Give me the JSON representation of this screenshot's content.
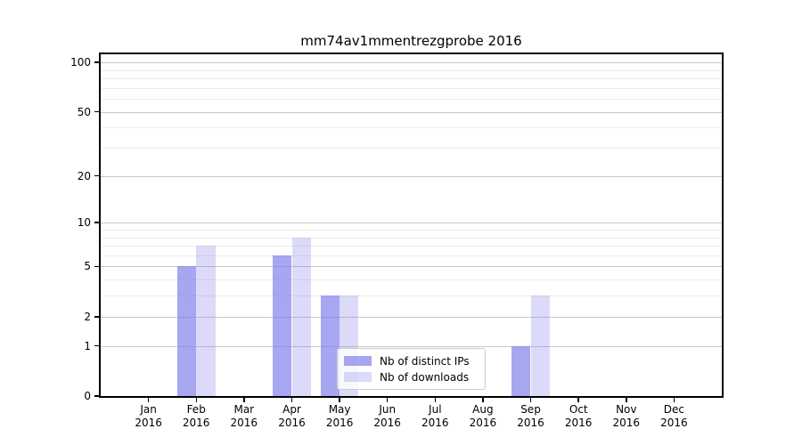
{
  "page": {
    "background_color": "#ffffff"
  },
  "chart_data": {
    "type": "bar",
    "title": "mm74av1mmentrezgprobe 2016",
    "categories": [
      "Jan",
      "Feb",
      "Mar",
      "Apr",
      "May",
      "Jun",
      "Jul",
      "Aug",
      "Sep",
      "Oct",
      "Nov",
      "Dec"
    ],
    "year": "2016",
    "series": [
      {
        "name": "Nb of distinct IPs",
        "values": [
          0,
          5,
          0,
          6,
          3,
          0,
          0,
          0,
          1,
          0,
          0,
          0
        ],
        "color": "rgba(124, 124, 235, 0.68)"
      },
      {
        "name": "Nb of downloads",
        "values": [
          0,
          7,
          0,
          8,
          3,
          0,
          0,
          0,
          3,
          0,
          0,
          0
        ],
        "color": "rgba(124, 124, 235, 0.28)"
      }
    ],
    "xlabel": "",
    "ylabel": "",
    "y_axis": {
      "scale": "log1p",
      "ticks": [
        0,
        1,
        2,
        5,
        10,
        20,
        50,
        100
      ],
      "minor_gridlines": [
        3,
        4,
        6,
        7,
        8,
        9,
        30,
        40,
        60,
        70,
        80,
        90
      ],
      "ylim": [
        0,
        112
      ]
    },
    "grid": true,
    "legend": {
      "position": "inside-bottom-center"
    },
    "colors": {
      "major_grid": "#c9c9c9",
      "minor_grid": "#ececec",
      "axis": "#000000",
      "text": "#000000"
    }
  }
}
